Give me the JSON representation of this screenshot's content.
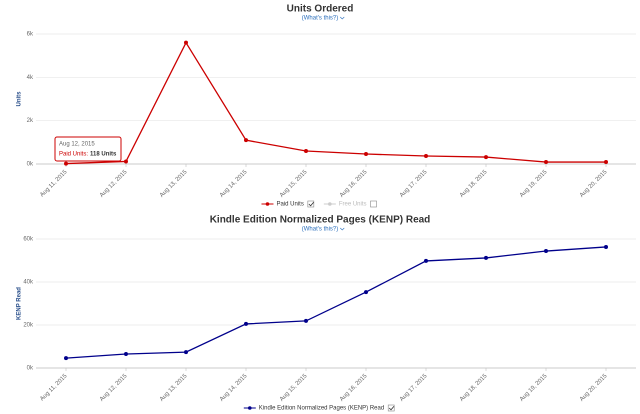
{
  "chart_data": [
    {
      "type": "line",
      "title": "Units Ordered",
      "subtitle": "(What's this?)",
      "y_label": "Units",
      "x": [
        "Aug 11, 2015",
        "Aug 12, 2015",
        "Aug 13, 2015",
        "Aug 14, 2015",
        "Aug 15, 2015",
        "Aug 16, 2015",
        "Aug 17, 2015",
        "Aug 18, 2015",
        "Aug 19, 2015",
        "Aug 20, 2015"
      ],
      "series": [
        {
          "name": "Paid Units",
          "color": "#cc0000",
          "values": [
            20,
            118,
            5600,
            1100,
            600,
            460,
            370,
            320,
            90,
            90
          ]
        }
      ],
      "legend": [
        {
          "label": "Paid Units",
          "checked": true,
          "color": "#cc0000"
        },
        {
          "label": "Free Units",
          "checked": false,
          "color": "#cccccc"
        }
      ],
      "ylim": [
        0,
        6000
      ],
      "yticks": [
        {
          "value": 0,
          "label": "0k"
        },
        {
          "value": 2000,
          "label": "2k"
        },
        {
          "value": 4000,
          "label": "4k"
        },
        {
          "value": 6000,
          "label": "6k"
        }
      ],
      "grid": true,
      "tooltip": {
        "date": "Aug 12, 2015",
        "label": "Paid Units:",
        "value_text": "118 Units"
      }
    },
    {
      "type": "line",
      "title": "Kindle Edition Normalized Pages (KENP) Read",
      "subtitle": "(What's this?)",
      "y_label": "KENP Read",
      "x": [
        "Aug 11, 2015",
        "Aug 12, 2015",
        "Aug 13, 2015",
        "Aug 14, 2015",
        "Aug 15, 2015",
        "Aug 16, 2015",
        "Aug 17, 2015",
        "Aug 18, 2015",
        "Aug 19, 2015",
        "Aug 20, 2015"
      ],
      "series": [
        {
          "name": "Kindle Edition Normalized Pages (KENP) Read",
          "color": "#00008b",
          "values": [
            4600,
            6500,
            7400,
            20500,
            21900,
            35300,
            49800,
            51200,
            54400,
            56300
          ]
        }
      ],
      "legend": [
        {
          "label": "Kindle Edition Normalized Pages (KENP) Read",
          "checked": true,
          "color": "#00008b"
        }
      ],
      "ylim": [
        0,
        60000
      ],
      "yticks": [
        {
          "value": 0,
          "label": "0k"
        },
        {
          "value": 20000,
          "label": "20k"
        },
        {
          "value": 40000,
          "label": "40k"
        },
        {
          "value": 60000,
          "label": "60k"
        }
      ],
      "grid": true
    }
  ]
}
